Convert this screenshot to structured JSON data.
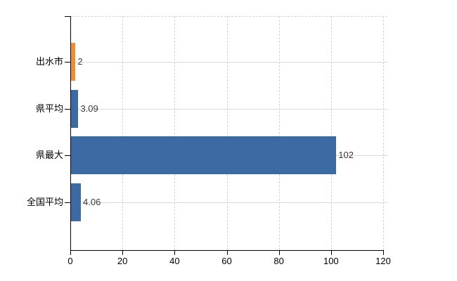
{
  "chart_data": {
    "type": "bar",
    "orientation": "horizontal",
    "title": "",
    "xlabel": "",
    "ylabel": "",
    "categories": [
      "出水市",
      "県平均",
      "県最大",
      "全国平均"
    ],
    "values": [
      2,
      3.09,
      102,
      4.06
    ],
    "value_labels": [
      "2",
      "3.09",
      "102",
      "4.06"
    ],
    "bar_colors": [
      "#ee8d33",
      "#3c6ba3",
      "#3c6ba3",
      "#3c6ba3"
    ],
    "xlim": [
      0,
      120
    ],
    "xticks": [
      0,
      20,
      40,
      60,
      80,
      100,
      120
    ],
    "xtick_labels": [
      "0",
      "20",
      "40",
      "60",
      "80",
      "100",
      "120"
    ],
    "legend": "none",
    "grid": {
      "vertical": "dashed",
      "horizontal": "solid category lines",
      "color": "#d9d9d9"
    },
    "background_color": "#ffffff",
    "axis_color": "#000000",
    "label_color": "#3a3a3a"
  }
}
